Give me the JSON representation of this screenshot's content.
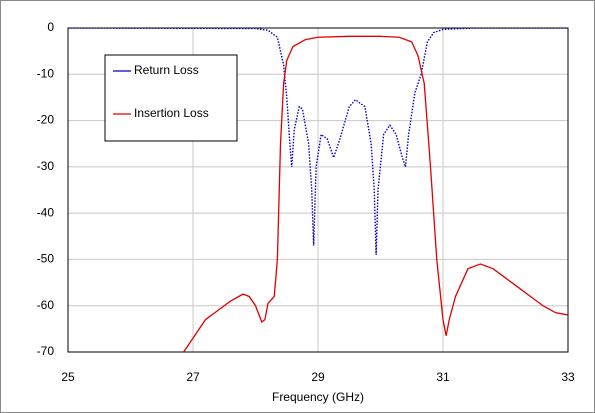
{
  "chart_data": {
    "type": "line",
    "xlabel": "Frequency (GHz)",
    "xlim": [
      25,
      33
    ],
    "xticks": [
      25,
      27,
      29,
      31,
      33
    ],
    "ylim": [
      -70,
      0
    ],
    "yticks": [
      0,
      -10,
      -20,
      -30,
      -40,
      -50,
      -60,
      -70
    ],
    "grid": true,
    "legend": "upper left",
    "series": [
      {
        "name": "Return Loss",
        "color": "#0000cc",
        "style": "dotted",
        "x": [
          25,
          28.0,
          28.2,
          28.35,
          28.45,
          28.5,
          28.55,
          28.58,
          28.62,
          28.7,
          28.75,
          28.85,
          28.9,
          28.93,
          28.97,
          29.05,
          29.15,
          29.25,
          29.35,
          29.5,
          29.6,
          29.75,
          29.85,
          29.9,
          29.93,
          29.96,
          30.05,
          30.15,
          30.25,
          30.35,
          30.4,
          30.45,
          30.55,
          30.65,
          30.75,
          30.85,
          31.0,
          31.5,
          33
        ],
        "values": [
          0,
          -0.1,
          -0.5,
          -2,
          -8,
          -15,
          -25,
          -30,
          -22,
          -17,
          -17.5,
          -25,
          -35,
          -47,
          -30,
          -23,
          -24,
          -28,
          -24,
          -17,
          -15.5,
          -17,
          -25,
          -35,
          -49,
          -35,
          -23,
          -21,
          -23,
          -28,
          -30,
          -23,
          -14,
          -10,
          -3,
          -1,
          -0.3,
          0,
          0
        ]
      },
      {
        "name": "Insertion Loss",
        "color": "#e00000",
        "style": "solid",
        "x": [
          26.85,
          27.0,
          27.2,
          27.4,
          27.6,
          27.8,
          27.9,
          28.0,
          28.1,
          28.15,
          28.2,
          28.3,
          28.35,
          28.4,
          28.45,
          28.5,
          28.6,
          28.8,
          29.0,
          29.5,
          30.0,
          30.3,
          30.5,
          30.6,
          30.7,
          30.8,
          30.9,
          31.0,
          31.05,
          31.1,
          31.2,
          31.4,
          31.6,
          31.8,
          32.0,
          32.2,
          32.4,
          32.6,
          32.8,
          33.0
        ],
        "values": [
          -70,
          -67,
          -63,
          -61,
          -59,
          -57.5,
          -58,
          -60,
          -63.5,
          -63,
          -59.5,
          -58,
          -50,
          -25,
          -12,
          -7,
          -4,
          -2.5,
          -2,
          -1.8,
          -1.8,
          -2,
          -3,
          -6,
          -12,
          -30,
          -50,
          -63,
          -66.5,
          -63,
          -58,
          -52,
          -51,
          -52,
          -54,
          -56,
          -58,
          -60,
          -61.5,
          -62
        ]
      }
    ]
  }
}
